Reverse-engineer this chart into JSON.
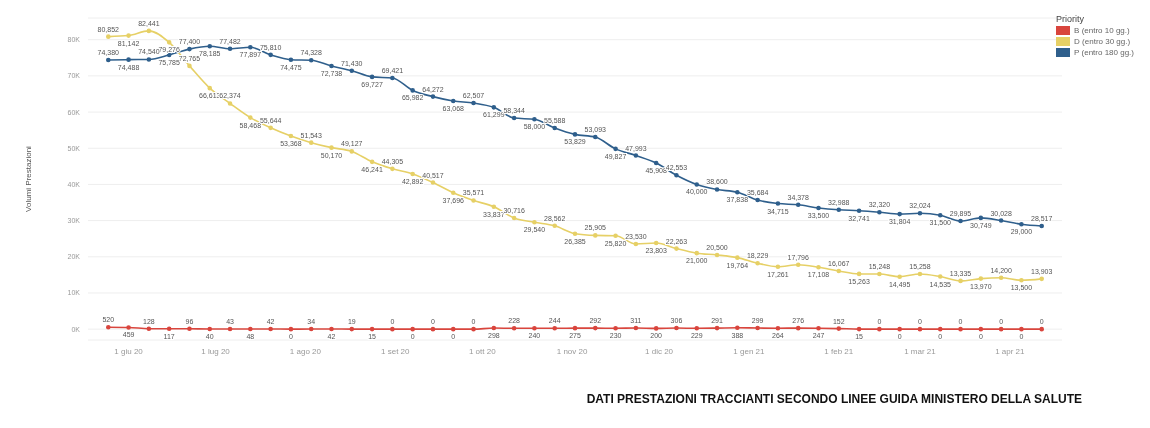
{
  "chart_data": {
    "type": "line",
    "title": "DATI PRESTAZIONI TRACCIANTI SECONDO LINEE GUIDA MINISTERO DELLA SALUTE",
    "ylabel": "Volumi Prestazioni",
    "legend_title": "Priority",
    "legend": "top right",
    "grid": "y",
    "marker": "circle",
    "x": [
      "2020-05-25",
      "2020-06-01",
      "2020-06-08",
      "2020-06-15",
      "2020-06-22",
      "2020-06-29",
      "2020-07-06",
      "2020-07-13",
      "2020-07-20",
      "2020-07-27",
      "2020-08-03",
      "2020-08-10",
      "2020-08-17",
      "2020-08-24",
      "2020-08-31",
      "2020-09-07",
      "2020-09-14",
      "2020-09-21",
      "2020-09-28",
      "2020-10-05",
      "2020-10-12",
      "2020-10-19",
      "2020-10-26",
      "2020-11-02",
      "2020-11-09",
      "2020-11-16",
      "2020-11-23",
      "2020-11-30",
      "2020-12-07",
      "2020-12-14",
      "2020-12-21",
      "2020-12-28",
      "2021-01-04",
      "2021-01-11",
      "2021-01-18",
      "2021-01-25",
      "2021-02-01",
      "2021-02-08",
      "2021-02-15",
      "2021-02-22",
      "2021-03-01",
      "2021-03-08",
      "2021-03-15",
      "2021-03-22",
      "2021-03-29",
      "2021-04-05",
      "2021-04-12"
    ],
    "xlim": [
      "2020-05-18",
      "2021-04-19"
    ],
    "xticks": [
      {
        "value": "2020-06-01",
        "label": "1 giu 20"
      },
      {
        "value": "2020-07-01",
        "label": "1 lug 20"
      },
      {
        "value": "2020-08-01",
        "label": "1 ago 20"
      },
      {
        "value": "2020-09-01",
        "label": "1 set 20"
      },
      {
        "value": "2020-10-01",
        "label": "1 ott 20"
      },
      {
        "value": "2020-11-01",
        "label": "1 nov 20"
      },
      {
        "value": "2020-12-01",
        "label": "1 dic 20"
      },
      {
        "value": "2021-01-01",
        "label": "1 gen 21"
      },
      {
        "value": "2021-02-01",
        "label": "1 feb 21"
      },
      {
        "value": "2021-03-01",
        "label": "1 mar 21"
      },
      {
        "value": "2021-04-01",
        "label": "1 apr 21"
      }
    ],
    "ylim": [
      -3000,
      86000
    ],
    "yticks": [
      {
        "value": 0,
        "label": "0K"
      },
      {
        "value": 10000,
        "label": "10K"
      },
      {
        "value": 20000,
        "label": "20K"
      },
      {
        "value": 30000,
        "label": "30K"
      },
      {
        "value": 40000,
        "label": "40K"
      },
      {
        "value": 50000,
        "label": "50K"
      },
      {
        "value": 60000,
        "label": "60K"
      },
      {
        "value": 70000,
        "label": "70K"
      },
      {
        "value": 80000,
        "label": "80K"
      }
    ],
    "series": [
      {
        "name": "B (entro 10 gg.)",
        "color": "#d9453d",
        "values": [
          520,
          459,
          128,
          117,
          96,
          40,
          43,
          48,
          42,
          0,
          34,
          42,
          19,
          15,
          0,
          0,
          0,
          0,
          0,
          298,
          228,
          240,
          244,
          275,
          292,
          230,
          311,
          200,
          306,
          229,
          291,
          388,
          299,
          264,
          276,
          247,
          152,
          15,
          0,
          0,
          0,
          0,
          0,
          0,
          0,
          0,
          0
        ],
        "value_labels": [
          "520",
          "459",
          "128",
          "117",
          "96",
          "40",
          "43",
          "48",
          "42",
          "0",
          "34",
          "42",
          "19",
          "15",
          "0",
          "0",
          "0",
          "0",
          "0",
          "298",
          "228",
          "240",
          "244",
          "275",
          "292",
          "230",
          "311",
          "200",
          "306",
          "229",
          "291",
          "388",
          "299",
          "264",
          "276",
          "247",
          "152",
          "15",
          "0",
          "0",
          "0",
          "0",
          "0",
          "0",
          "0",
          "0",
          "0"
        ]
      },
      {
        "name": "D (entro 30 gg.)",
        "color": "#e6d066",
        "values": [
          80852,
          81142,
          82441,
          79276,
          72765,
          66613,
          62374,
          58468,
          55644,
          53368,
          51543,
          50170,
          49127,
          46241,
          44305,
          42892,
          40517,
          37696,
          35571,
          33837,
          30716,
          29540,
          28562,
          26385,
          25905,
          25820,
          23530,
          23803,
          22263,
          21000,
          20500,
          19764,
          18229,
          17261,
          17796,
          17108,
          16067,
          15263,
          15248,
          14495,
          15258,
          14535,
          13335,
          13970,
          14200,
          13500,
          13903
        ],
        "value_labels": [
          "80,852",
          "81,142",
          "82,441",
          "79,276",
          "72,765",
          "66,613",
          "62,374",
          "58,468",
          "55,644",
          "53,368",
          "51,543",
          "50,170",
          "49,127",
          "46,241",
          "44,305",
          "42,892",
          "40,517",
          "37,696",
          "35,571",
          "33,837",
          "30,716",
          "29,540",
          "28,562",
          "26,385",
          "25,905",
          "25,820",
          "23,530",
          "23,803",
          "22,263",
          "21,000",
          "20,500",
          "19,764",
          "18,229",
          "17,261",
          "17,796",
          "17,108",
          "16,067",
          "15,263",
          "15,248",
          "14,495",
          "15,258",
          "14,535",
          "13,335",
          "13,970",
          "14,200",
          "13,500",
          "13,903"
        ]
      },
      {
        "name": "P (entro 180 gg.)",
        "color": "#2f5f8c",
        "values": [
          74380,
          74488,
          74540,
          75785,
          77400,
          78185,
          77482,
          77897,
          75810,
          74475,
          74328,
          72738,
          71430,
          69727,
          69421,
          65982,
          64272,
          63068,
          62507,
          61299,
          58344,
          58000,
          55588,
          53829,
          53093,
          49827,
          47993,
          45908,
          42553,
          40000,
          38600,
          37838,
          35684,
          34715,
          34378,
          33500,
          32988,
          32741,
          32320,
          31804,
          32024,
          31500,
          29895,
          30749,
          30028,
          29000,
          28517
        ],
        "value_labels": [
          "74,380",
          "74,488",
          "74,540",
          "75,785",
          "77,400",
          "78,185",
          "77,482",
          "77,897",
          "75,810",
          "74,475",
          "74,328",
          "72,738",
          "71,430",
          "69,727",
          "69,421",
          "65,982",
          "64,272",
          "63,068",
          "62,507",
          "61,299",
          "58,344",
          "58,000",
          "55,588",
          "53,829",
          "53,093",
          "49,827",
          "47,993",
          "45,908",
          "42,553",
          "40,000",
          "38,600",
          "37,838",
          "35,684",
          "34,715",
          "34,378",
          "33,500",
          "32,988",
          "32,741",
          "32,320",
          "31,804",
          "32,024",
          "31,500",
          "29,895",
          "30,749",
          "30,028",
          "29,000",
          "28,517"
        ]
      }
    ]
  }
}
